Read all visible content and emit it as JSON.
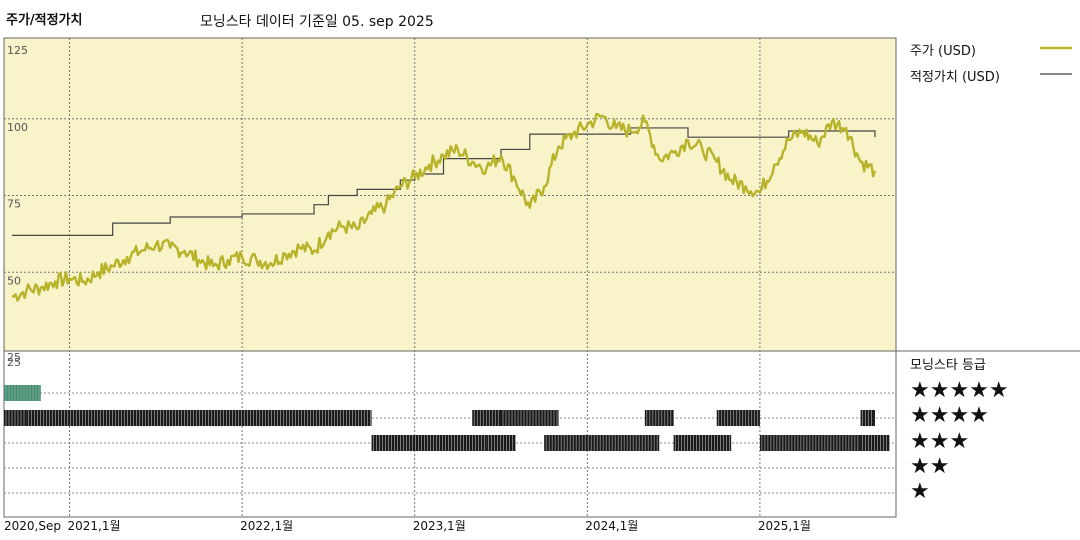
{
  "header": {
    "left_title": "주가/적정가치",
    "main_title": "모닝스타 데이터 기준일 05. sep 2025"
  },
  "legend": {
    "price_label": "주가 (USD)",
    "fair_label": "적정가치 (USD)",
    "rating_label": "모닝스타 등급"
  },
  "stars": [
    "★★★★★",
    "★★★★",
    "★★★",
    "★★",
    "★"
  ],
  "colors": {
    "price": "#b7b32a",
    "fair": "#444444",
    "panel_bg": "#f8f3c8",
    "bars": "#1a1a1a",
    "five_star_bar": "#3e8f6e"
  },
  "chart_data": {
    "type": "line",
    "title": "모닝스타 데이터 기준일 05. sep 2025",
    "ylim": [
      25,
      125
    ],
    "yticks": [
      "125",
      "100",
      "75",
      "50",
      "25"
    ],
    "x_labels": [
      "2020,Sep",
      "2021,1월",
      "2022,1월",
      "2023,1월",
      "2024,1월",
      "2025,1월"
    ],
    "x_start": "2020-09",
    "x_end": "2025-09",
    "series": [
      {
        "name": "주가 (USD)",
        "points": [
          [
            "2020-09",
            42
          ],
          [
            "2020-10",
            44
          ],
          [
            "2020-11",
            45
          ],
          [
            "2020-12",
            47
          ],
          [
            "2021-01",
            48
          ],
          [
            "2021-02",
            47
          ],
          [
            "2021-03",
            50
          ],
          [
            "2021-04",
            52
          ],
          [
            "2021-05",
            55
          ],
          [
            "2021-06",
            57
          ],
          [
            "2021-07",
            59
          ],
          [
            "2021-08",
            58
          ],
          [
            "2021-09",
            57
          ],
          [
            "2021-10",
            54
          ],
          [
            "2021-11",
            52
          ],
          [
            "2021-12",
            54
          ],
          [
            "2022-01",
            55
          ],
          [
            "2022-02",
            54
          ],
          [
            "2022-03",
            53
          ],
          [
            "2022-04",
            56
          ],
          [
            "2022-05",
            58
          ],
          [
            "2022-06",
            57
          ],
          [
            "2022-07",
            63
          ],
          [
            "2022-08",
            65
          ],
          [
            "2022-09",
            64
          ],
          [
            "2022-10",
            69
          ],
          [
            "2022-11",
            72
          ],
          [
            "2022-12",
            78
          ],
          [
            "2023-01",
            81
          ],
          [
            "2023-02",
            85
          ],
          [
            "2023-03",
            88
          ],
          [
            "2023-04",
            90
          ],
          [
            "2023-05",
            86
          ],
          [
            "2023-06",
            84
          ],
          [
            "2023-07",
            88
          ],
          [
            "2023-08",
            80
          ],
          [
            "2023-09",
            71
          ],
          [
            "2023-10",
            78
          ],
          [
            "2023-11",
            91
          ],
          [
            "2023-12",
            95
          ],
          [
            "2024-01",
            98
          ],
          [
            "2024-02",
            101
          ],
          [
            "2024-03",
            97
          ],
          [
            "2024-04",
            96
          ],
          [
            "2024-05",
            99
          ],
          [
            "2024-06",
            87
          ],
          [
            "2024-07",
            89
          ],
          [
            "2024-08",
            93
          ],
          [
            "2024-09",
            90
          ],
          [
            "2024-10",
            86
          ],
          [
            "2024-11",
            80
          ],
          [
            "2024-12",
            78
          ],
          [
            "2025-01",
            76
          ],
          [
            "2025-02",
            85
          ],
          [
            "2025-03",
            93
          ],
          [
            "2025-04",
            96
          ],
          [
            "2025-05",
            92
          ],
          [
            "2025-06",
            99
          ],
          [
            "2025-07",
            97
          ],
          [
            "2025-08",
            86
          ],
          [
            "2025-09",
            83
          ]
        ]
      },
      {
        "name": "적정가치 (USD)",
        "points": [
          [
            "2020-09",
            62
          ],
          [
            "2021-03",
            62
          ],
          [
            "2021-04",
            66
          ],
          [
            "2021-07",
            66
          ],
          [
            "2021-08",
            68
          ],
          [
            "2021-12",
            68
          ],
          [
            "2022-01",
            69
          ],
          [
            "2022-05",
            69
          ],
          [
            "2022-06",
            72
          ],
          [
            "2022-07",
            75
          ],
          [
            "2022-09",
            77
          ],
          [
            "2022-12",
            80
          ],
          [
            "2023-01",
            82
          ],
          [
            "2023-02",
            82
          ],
          [
            "2023-03",
            87
          ],
          [
            "2023-06",
            87
          ],
          [
            "2023-07",
            90
          ],
          [
            "2023-08",
            90
          ],
          [
            "2023-09",
            95
          ],
          [
            "2024-03",
            95
          ],
          [
            "2024-04",
            97
          ],
          [
            "2024-07",
            97
          ],
          [
            "2024-08",
            94
          ],
          [
            "2024-11",
            94
          ],
          [
            "2024-12",
            94
          ],
          [
            "2025-02",
            94
          ],
          [
            "2025-03",
            96
          ],
          [
            "2025-08",
            96
          ],
          [
            "2025-09",
            94
          ]
        ]
      }
    ],
    "ratings": [
      {
        "stars": 5,
        "from": "2020-09",
        "to": "2020-10"
      },
      {
        "stars": 4,
        "from": "2020-09",
        "to": "2020-09"
      },
      {
        "stars": 4,
        "from": "2020-10",
        "to": "2022-09"
      },
      {
        "stars": 3,
        "from": "2022-10",
        "to": "2023-05"
      },
      {
        "stars": 4,
        "from": "2023-05",
        "to": "2023-06"
      },
      {
        "stars": 3,
        "from": "2023-06",
        "to": "2023-07"
      },
      {
        "stars": 4,
        "from": "2023-07",
        "to": "2023-10"
      },
      {
        "stars": 3,
        "from": "2023-10",
        "to": "2024-05"
      },
      {
        "stars": 4,
        "from": "2024-05",
        "to": "2024-06"
      },
      {
        "stars": 3,
        "from": "2024-07",
        "to": "2024-10"
      },
      {
        "stars": 4,
        "from": "2024-10",
        "to": "2024-12"
      },
      {
        "stars": 3,
        "from": "2025-01",
        "to": "2025-08"
      },
      {
        "stars": 4,
        "from": "2025-08",
        "to": "2025-08"
      },
      {
        "stars": 3,
        "from": "2025-08",
        "to": "2025-09"
      }
    ],
    "grid": true,
    "legend_position": "right"
  }
}
